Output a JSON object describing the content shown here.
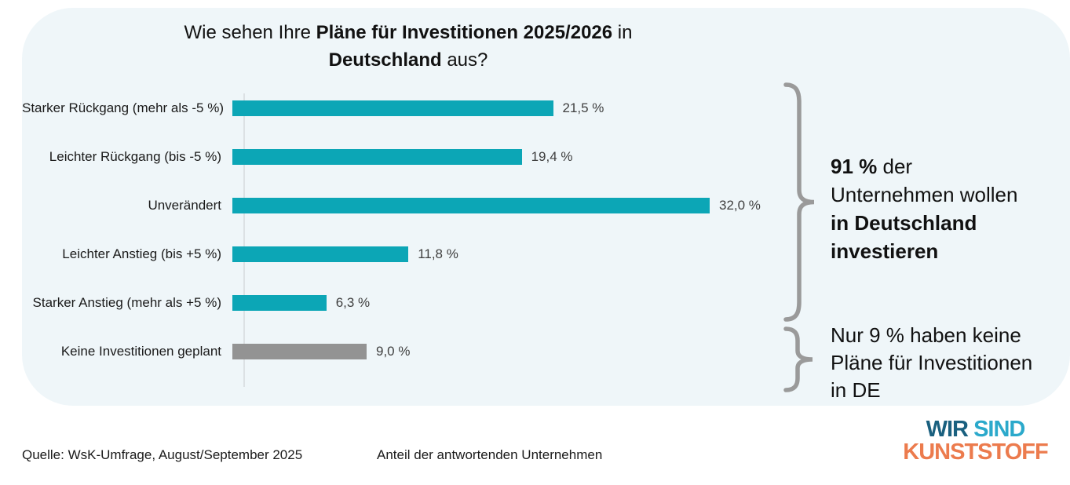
{
  "title": {
    "line1_pre": "Wie sehen Ihre ",
    "line1_bold": "Pläne für Investitionen 2025/2026",
    "line1_post": " in",
    "line2_bold": "Deutschland",
    "line2_post": " aus?"
  },
  "chart_data": {
    "type": "bar",
    "orientation": "horizontal",
    "title": "Wie sehen Ihre Pläne für Investitionen 2025/2026 in Deutschland aus?",
    "categories": [
      "Starker Rückgang (mehr als -5 %)",
      "Leichter Rückgang (bis -5 %)",
      "Unverändert",
      "Leichter Anstieg (bis +5 %)",
      "Starker Anstieg (mehr als +5 %)",
      "Keine Investitionen geplant"
    ],
    "values": [
      21.5,
      19.4,
      32.0,
      11.8,
      6.3,
      9.0
    ],
    "value_labels": [
      "21,5 %",
      "19,4 %",
      "32,0 %",
      "11,8 %",
      "6,3 %",
      "9,0 %"
    ],
    "bar_colors": [
      "#0CA6B6",
      "#0CA6B6",
      "#0CA6B6",
      "#0CA6B6",
      "#0CA6B6",
      "#939393"
    ],
    "xlabel": "Anteil der antwortenden Unternehmen",
    "ylabel": "",
    "xlim": [
      0,
      35
    ],
    "grid": false,
    "legend": false
  },
  "annotation_91": {
    "line1_bold": "91 %",
    "line1_rest": " der",
    "line2": "Unternehmen wollen",
    "line3_bold": "in Deutschland",
    "line4_bold": "investieren"
  },
  "annotation_9": {
    "line1": "Nur 9 % haben keine",
    "line2": "Pläne für Investitionen",
    "line3": "in DE"
  },
  "footer": {
    "source": "Quelle: WsK-Umfrage, August/September 2025",
    "axis_note": "Anteil der antwortenden Unternehmen"
  },
  "logo": {
    "word1": "WIR",
    "word2": "SIND",
    "word3": "KUNSTSTOFF",
    "color_wir": "#1A607F",
    "color_sind": "#2BA9CB",
    "color_kunststoff": "#EC7B4D"
  },
  "colors": {
    "panel_background": "#EFF6F9",
    "bar_teal": "#0CA6B6",
    "bar_gray": "#939393",
    "brace_gray": "#9A9A9A"
  }
}
